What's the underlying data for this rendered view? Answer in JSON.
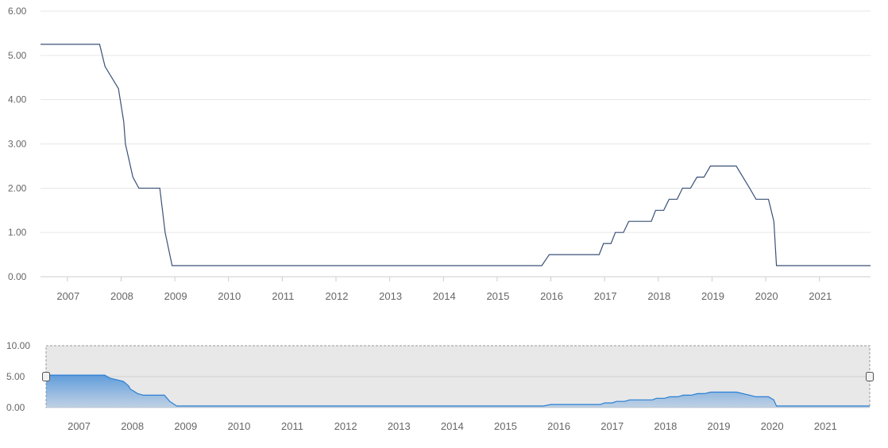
{
  "chart_data": {
    "type": "line",
    "title": "",
    "xlabel": "",
    "ylabel": "",
    "ylim": [
      0,
      6
    ],
    "grid": true,
    "y_ticks": [
      "0.00",
      "1.00",
      "2.00",
      "3.00",
      "4.00",
      "5.00",
      "6.00"
    ],
    "x_ticks": [
      "2007",
      "2008",
      "2009",
      "2010",
      "2011",
      "2012",
      "2013",
      "2014",
      "2015",
      "2016",
      "2017",
      "2018",
      "2019",
      "2020",
      "2021"
    ],
    "series": [
      {
        "name": "",
        "color": "#3a5078",
        "points": [
          [
            2006.5,
            5.25
          ],
          [
            2007.6,
            5.25
          ],
          [
            2007.7,
            4.75
          ],
          [
            2007.95,
            4.25
          ],
          [
            2008.05,
            3.5
          ],
          [
            2008.08,
            3.0
          ],
          [
            2008.22,
            2.25
          ],
          [
            2008.33,
            2.0
          ],
          [
            2008.72,
            2.0
          ],
          [
            2008.82,
            1.0
          ],
          [
            2008.95,
            0.25
          ],
          [
            2015.83,
            0.25
          ],
          [
            2015.97,
            0.5
          ],
          [
            2016.9,
            0.5
          ],
          [
            2016.98,
            0.75
          ],
          [
            2017.12,
            0.75
          ],
          [
            2017.2,
            1.0
          ],
          [
            2017.35,
            1.0
          ],
          [
            2017.45,
            1.25
          ],
          [
            2017.87,
            1.25
          ],
          [
            2017.95,
            1.5
          ],
          [
            2018.1,
            1.5
          ],
          [
            2018.2,
            1.75
          ],
          [
            2018.35,
            1.75
          ],
          [
            2018.45,
            2.0
          ],
          [
            2018.6,
            2.0
          ],
          [
            2018.72,
            2.25
          ],
          [
            2018.85,
            2.25
          ],
          [
            2018.97,
            2.5
          ],
          [
            2019.45,
            2.5
          ],
          [
            2019.7,
            2.0
          ],
          [
            2019.82,
            1.75
          ],
          [
            2020.05,
            1.75
          ],
          [
            2020.15,
            1.25
          ],
          [
            2020.2,
            0.25
          ],
          [
            2021.95,
            0.25
          ]
        ]
      }
    ],
    "navigator": {
      "ylim": [
        0,
        10
      ],
      "y_ticks": [
        "0.00",
        "5.00",
        "10.00"
      ],
      "x_ticks": [
        "2007",
        "2008",
        "2009",
        "2010",
        "2011",
        "2012",
        "2013",
        "2014",
        "2015",
        "2016",
        "2017",
        "2018",
        "2019",
        "2020",
        "2021"
      ],
      "fill_color": "#4a90d9",
      "line_color": "#2a7fd4"
    }
  }
}
